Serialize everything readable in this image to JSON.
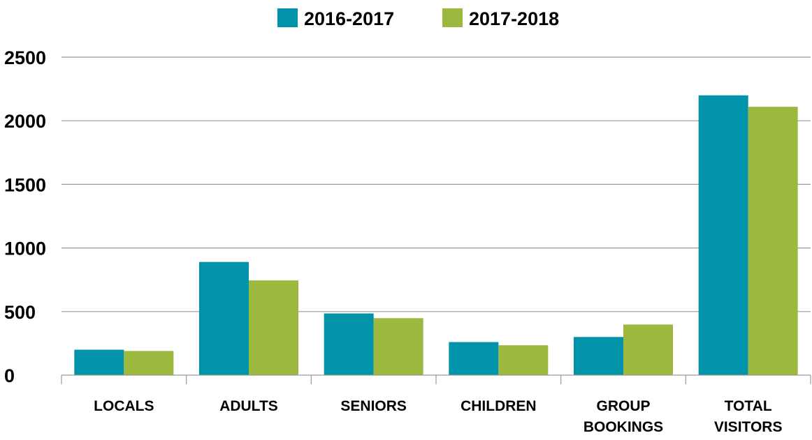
{
  "chart_data": {
    "type": "bar",
    "title": "",
    "xlabel": "",
    "ylabel": "",
    "ylim": [
      0,
      2500
    ],
    "yticks": [
      "0",
      "500",
      "1000",
      "1500",
      "2000",
      "2500"
    ],
    "grid": true,
    "legend_position": "top-center",
    "categories": [
      [
        "LOCALS"
      ],
      [
        "ADULTS"
      ],
      [
        "SENIORS"
      ],
      [
        "CHILDREN"
      ],
      [
        "GROUP",
        "BOOKINGS"
      ],
      [
        "TOTAL",
        "VISITORS"
      ]
    ],
    "series": [
      {
        "name": "2016-2017",
        "color": "#0093A9",
        "values": [
          200,
          890,
          485,
          260,
          300,
          2200
        ]
      },
      {
        "name": "2017-2018",
        "color": "#9CB83E",
        "values": [
          190,
          745,
          448,
          235,
          398,
          2110
        ]
      }
    ]
  }
}
